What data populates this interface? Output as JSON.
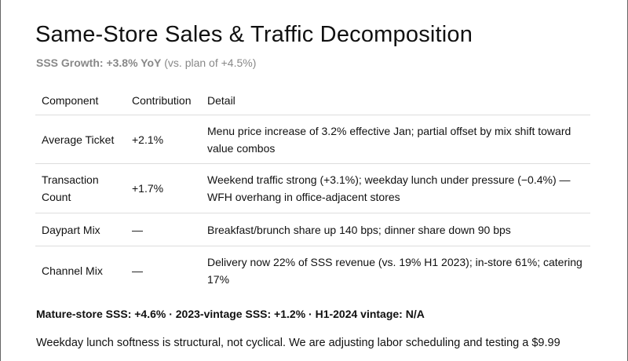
{
  "title": "Same-Store Sales & Traffic Decomposition",
  "subtitle": {
    "bold": "SSS Growth: +3.8% YoY",
    "rest": " (vs. plan of +4.5%)"
  },
  "table": {
    "headers": [
      "Component",
      "Contribution",
      "Detail"
    ],
    "rows": [
      {
        "component": "Average Ticket",
        "contribution": "+2.1%",
        "detail": "Menu price increase of 3.2% effective Jan; partial offset by mix shift toward value combos"
      },
      {
        "component": "Transaction Count",
        "contribution": "+1.7%",
        "detail": "Weekend traffic strong (+3.1%); weekday lunch under pressure (−0.4%) — WFH overhang in office-adjacent stores"
      },
      {
        "component": "Daypart Mix",
        "contribution": "—",
        "detail": "Breakfast/brunch share up 140 bps; dinner share down 90 bps"
      },
      {
        "component": "Channel Mix",
        "contribution": "—",
        "detail": "Delivery now 22% of SSS revenue (vs. 19% H1 2023); in-store 61%; catering 17%"
      }
    ]
  },
  "stats": "Mature-store SSS: +4.6% · 2023-vintage SSS: +1.2% · H1-2024 vintage: N/A",
  "body": "Weekday lunch softness is structural, not cyclical. We are adjusting labor scheduling and testing a $9.99"
}
